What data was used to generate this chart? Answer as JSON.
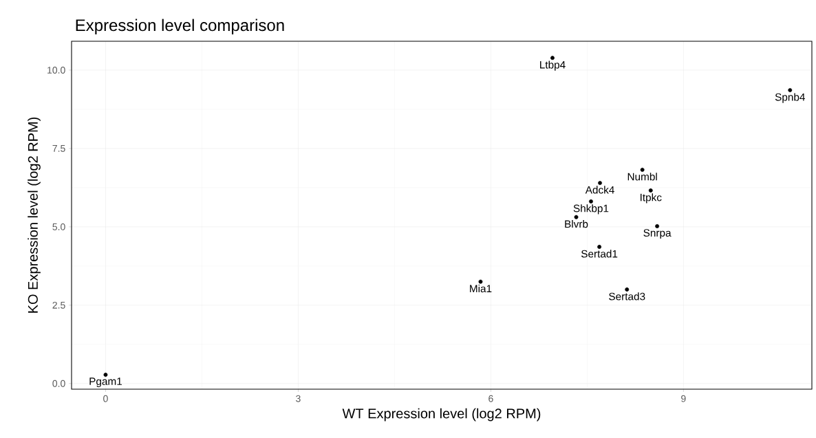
{
  "chart_data": {
    "type": "scatter",
    "title": "Expression level comparison",
    "xlabel": "WT Expression level (log2 RPM)",
    "ylabel": "KO Expression level (log2 RPM)",
    "x": [
      0,
      5.84,
      6.96,
      10.66,
      8.36,
      7.7,
      8.49,
      7.56,
      7.33,
      8.59,
      7.69,
      8.12
    ],
    "values": [
      0.28,
      3.25,
      10.39,
      9.36,
      6.82,
      6.4,
      6.16,
      5.81,
      5.31,
      5.02,
      4.36,
      3.0
    ],
    "color": "#000000",
    "marker": "circle",
    "grid": true,
    "xlim": [
      -0.53,
      11.0
    ],
    "ylim": [
      -0.18,
      10.92
    ],
    "xticks": [
      0,
      3,
      6,
      9
    ],
    "yticks": [
      {
        "value": 0,
        "label": "0.0"
      },
      {
        "value": 2.5,
        "label": "2.5"
      },
      {
        "value": 5,
        "label": "5.0"
      },
      {
        "value": 7.5,
        "label": "7.5"
      },
      {
        "value": 10,
        "label": "10.0"
      }
    ],
    "annotations": [
      {
        "text": "Pgam1",
        "x": 0,
        "y": 0.28
      },
      {
        "text": "Mia1",
        "x": 5.84,
        "y": 3.25
      },
      {
        "text": "Ltbp4",
        "x": 6.96,
        "y": 10.39
      },
      {
        "text": "Spnb4",
        "x": 10.66,
        "y": 9.36
      },
      {
        "text": "Numbl",
        "x": 8.36,
        "y": 6.82
      },
      {
        "text": "Adck4",
        "x": 7.7,
        "y": 6.4
      },
      {
        "text": "Itpkc",
        "x": 8.49,
        "y": 6.16
      },
      {
        "text": "Shkbp1",
        "x": 7.56,
        "y": 5.81
      },
      {
        "text": "Blvrb",
        "x": 7.33,
        "y": 5.31
      },
      {
        "text": "Snrpa",
        "x": 8.59,
        "y": 5.02
      },
      {
        "text": "Sertad1",
        "x": 7.69,
        "y": 4.36
      },
      {
        "text": "Sertad3",
        "x": 8.12,
        "y": 3.0
      }
    ]
  }
}
